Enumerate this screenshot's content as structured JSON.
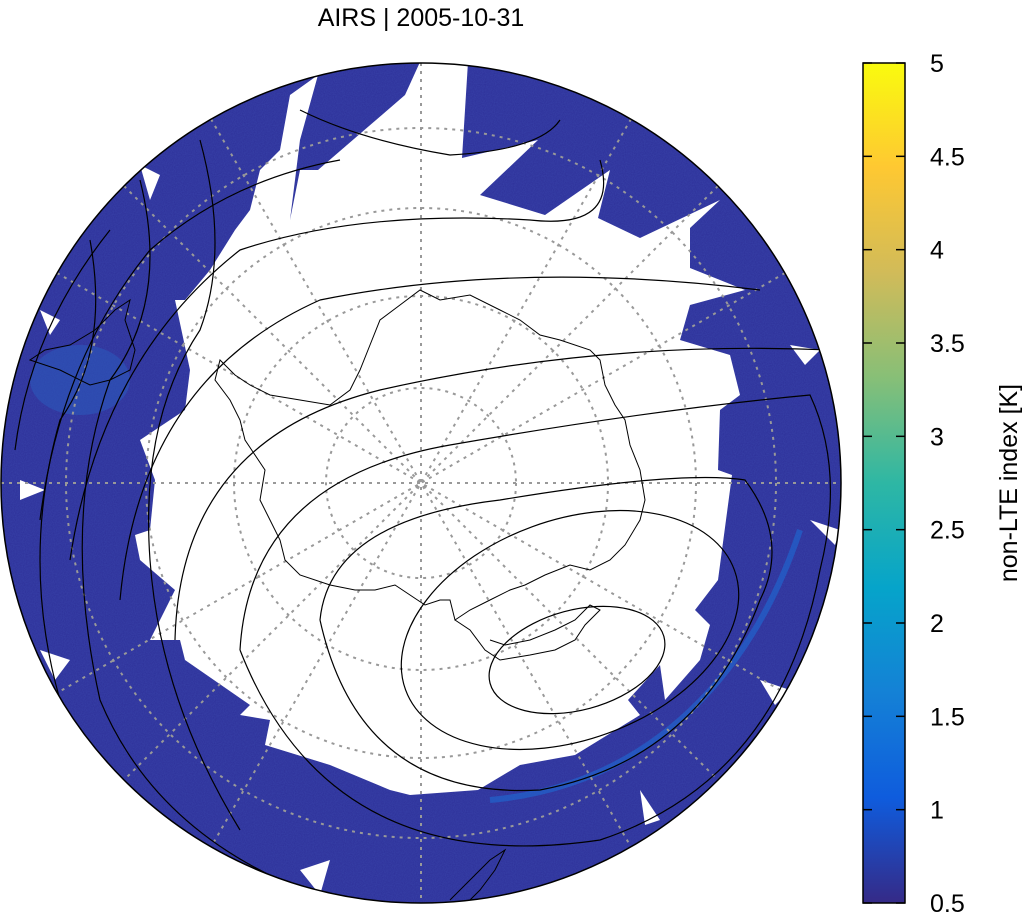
{
  "title": "AIRS | 2005-10-31",
  "colorbar": {
    "label": "non-LTE index [K]",
    "min": 0.5,
    "max": 5,
    "ticks": [
      "0.5",
      "1",
      "1.5",
      "2",
      "2.5",
      "3",
      "3.5",
      "4",
      "4.5",
      "5"
    ],
    "colormap": [
      "#352a87",
      "#0f5cdd",
      "#1481d6",
      "#06a4ca",
      "#2eb7a4",
      "#87bf77",
      "#d1bb59",
      "#fec832",
      "#f9fb0e"
    ]
  },
  "map": {
    "projection": "south polar stereographic",
    "background_value_color": "#2c2f96",
    "coastline_color": "#000000",
    "grid_style": "dotted gray",
    "no_data_region": "white (no coverage near pole)"
  }
}
